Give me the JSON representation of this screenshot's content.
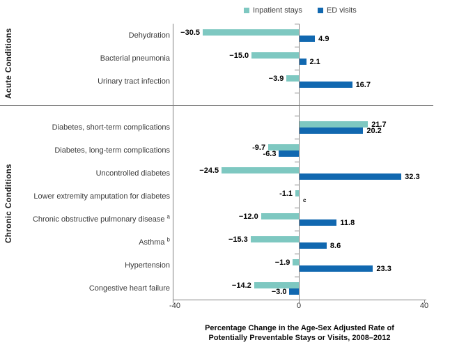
{
  "chart_data": {
    "type": "bar",
    "orientation": "horizontal",
    "xlim": [
      -40,
      40
    ],
    "xtick_labels": [
      "-40",
      "0",
      "40"
    ],
    "xlabel_lines": [
      "Percentage Change in the Age-Sex Adjusted Rate of",
      "Potentially Preventable Stays or Visits, 2008–2012"
    ],
    "legend_position": "top",
    "grid": false,
    "series": [
      {
        "name": "Inpatient stays",
        "color": "#7EC8C1"
      },
      {
        "name": "ED visits",
        "color": "#1168B0"
      }
    ],
    "groups": [
      {
        "name": "Acute Conditions",
        "rows": [
          {
            "category": "Dehydration",
            "values": [
              -30.5,
              4.9
            ],
            "labels": [
              "−30.5",
              "4.9"
            ]
          },
          {
            "category": "Bacterial pneumonia",
            "values": [
              -15.0,
              2.1
            ],
            "labels": [
              "−15.0",
              "2.1"
            ]
          },
          {
            "category": "Urinary tract infection",
            "values": [
              -3.9,
              16.7
            ],
            "labels": [
              "−3.9",
              "16.7"
            ]
          }
        ]
      },
      {
        "name": "Chronic Conditions",
        "rows": [
          {
            "category": "Diabetes, short-term complications",
            "values": [
              21.7,
              20.2
            ],
            "labels": [
              "21.7",
              "20.2"
            ]
          },
          {
            "category": "Diabetes, long-term complications",
            "values": [
              -9.7,
              -6.3
            ],
            "labels": [
              "-9.7",
              "-6.3"
            ]
          },
          {
            "category": "Uncontrolled diabetes",
            "values": [
              -24.5,
              32.3
            ],
            "labels": [
              "−24.5",
              "32.3"
            ]
          },
          {
            "category": "Lower extremity amputation for diabetes",
            "values": [
              -1.1,
              null
            ],
            "labels": [
              "-1.1",
              "c"
            ],
            "ed_footnote": "c"
          },
          {
            "category": "Chronic obstructive pulmonary disease",
            "sup": "a",
            "values": [
              -12.0,
              11.8
            ],
            "labels": [
              "−12.0",
              "11.8"
            ]
          },
          {
            "category": "Asthma",
            "sup": "b",
            "values": [
              -15.3,
              8.6
            ],
            "labels": [
              "−15.3",
              "8.6"
            ]
          },
          {
            "category": "Hypertension",
            "values": [
              -1.9,
              23.3
            ],
            "labels": [
              "−1.9",
              "23.3"
            ]
          },
          {
            "category": "Congestive heart failure",
            "values": [
              -14.2,
              -3.0
            ],
            "labels": [
              "−14.2",
              "−3.0"
            ]
          }
        ]
      }
    ]
  },
  "colors": {
    "axis_line": "#808080",
    "category_text": "#3A3A3A",
    "value_text": "#000000"
  }
}
